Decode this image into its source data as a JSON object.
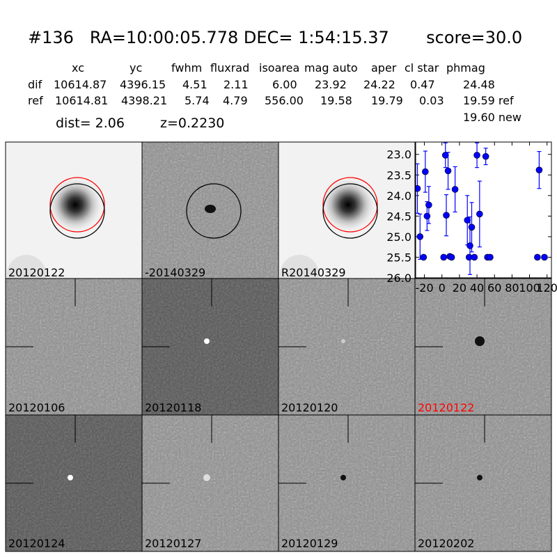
{
  "header": {
    "id": "#136",
    "ra": "RA=10:00:05.778",
    "dec": "DEC= 1:54:15.37",
    "score": "score=30.0"
  },
  "table": {
    "columns": [
      "xc",
      "yc",
      "fwhm",
      "fluxrad",
      "isoarea",
      "mag auto",
      "aper",
      "cl star",
      "phmag"
    ],
    "rows": [
      {
        "label": "dif",
        "values": [
          "10614.87",
          "4396.15",
          "4.51",
          "2.11",
          "6.00",
          "23.92",
          "24.22",
          "0.47",
          "24.48"
        ]
      },
      {
        "label": "ref",
        "values": [
          "10614.81",
          "4398.21",
          "5.74",
          "4.79",
          "556.00",
          "19.58",
          "19.79",
          "0.03",
          "19.59 ref"
        ]
      }
    ],
    "extra_phmag": "19.60 new",
    "dist": "dist=  2.06",
    "z": "z=0.2230"
  },
  "panels": {
    "top": [
      "20120122",
      "-20140329",
      "R20140329"
    ],
    "middle": [
      "20120106",
      "20120118",
      "20120120",
      "20120122"
    ],
    "bottom": [
      "20120124",
      "20120127",
      "20120129",
      "20120202"
    ],
    "highlight_color": "#ff0000",
    "circle_colors": {
      "dif": "#000000",
      "ref": "#ff0000"
    }
  },
  "chart_data": {
    "type": "scatter",
    "title": "",
    "xlabel": "",
    "ylabel": "",
    "xlim": [
      -30,
      125
    ],
    "ylim": [
      26.0,
      22.7
    ],
    "y_inverted": true,
    "xticks": [
      -20,
      0,
      20,
      40,
      60,
      80,
      100,
      120
    ],
    "xtick_labels": [
      "-20",
      "0",
      "20",
      "40",
      "60",
      "80",
      "100",
      "120"
    ],
    "yticks": [
      23.0,
      23.5,
      24.0,
      24.5,
      25.0,
      25.5,
      26.0
    ],
    "ytick_labels": [
      "23.0",
      "23.5",
      "24.0",
      "24.5",
      "25.0",
      "25.5",
      "26.0"
    ],
    "marker_color": "#0000ff",
    "points": [
      {
        "x": -28,
        "y": 23.83,
        "err": 0.6
      },
      {
        "x": -25,
        "y": 25.0,
        "err": 0.55
      },
      {
        "x": -21,
        "y": 25.5,
        "err": 0.0
      },
      {
        "x": -19,
        "y": 23.42,
        "err": 0.5
      },
      {
        "x": -17,
        "y": 24.5,
        "err": 0.35
      },
      {
        "x": -15,
        "y": 24.23,
        "err": 0.45
      },
      {
        "x": 2,
        "y": 25.5,
        "err": 0.0
      },
      {
        "x": 4,
        "y": 23.02,
        "err": 0.3
      },
      {
        "x": 5,
        "y": 24.48,
        "err": 0.5
      },
      {
        "x": 7,
        "y": 23.4,
        "err": 0.45
      },
      {
        "x": 9,
        "y": 25.48,
        "err": 0.0
      },
      {
        "x": 11,
        "y": 25.5,
        "err": 0.0
      },
      {
        "x": 15,
        "y": 23.85,
        "err": 0.55
      },
      {
        "x": 29,
        "y": 24.6,
        "err": 0.6
      },
      {
        "x": 31,
        "y": 25.5,
        "err": 0.0
      },
      {
        "x": 32,
        "y": 25.22,
        "err": 0.7
      },
      {
        "x": 34,
        "y": 24.77,
        "err": 0.6
      },
      {
        "x": 37,
        "y": 25.5,
        "err": 0.0
      },
      {
        "x": 40,
        "y": 23.02,
        "err": 0.3
      },
      {
        "x": 43,
        "y": 24.45,
        "err": 0.8
      },
      {
        "x": 50,
        "y": 23.05,
        "err": 0.2
      },
      {
        "x": 52,
        "y": 25.5,
        "err": 0.0
      },
      {
        "x": 55,
        "y": 25.5,
        "err": 0.0
      },
      {
        "x": 109,
        "y": 25.5,
        "err": 0.0
      },
      {
        "x": 111,
        "y": 23.38,
        "err": 0.45
      },
      {
        "x": 117,
        "y": 25.5,
        "err": 0.0
      }
    ]
  }
}
